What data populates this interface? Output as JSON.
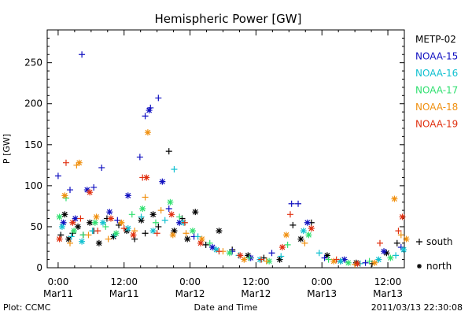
{
  "chart_data": {
    "type": "scatter",
    "title": "Hemispheric Power [GW]",
    "xlabel": "Date and Time",
    "ylabel": "P [GW]",
    "ylim": [
      0,
      290
    ],
    "yticks": [
      0,
      50,
      100,
      150,
      200,
      250
    ],
    "xlim": [
      -0.083,
      2.625
    ],
    "xticks": [
      {
        "x": 0.0,
        "time": "0:00",
        "date": "Mar11"
      },
      {
        "x": 0.5,
        "time": "12:00",
        "date": "Mar11"
      },
      {
        "x": 1.0,
        "time": "0:00",
        "date": "Mar12"
      },
      {
        "x": 1.5,
        "time": "12:00",
        "date": "Mar12"
      },
      {
        "x": 2.0,
        "time": "0:00",
        "date": "Mar13"
      },
      {
        "x": 2.5,
        "time": "12:00",
        "date": "Mar13"
      }
    ],
    "x_unit": "days since Mar11 0:00",
    "legend_position": "right",
    "markers": [
      {
        "symbol": "+",
        "label": "south"
      },
      {
        "symbol": "*",
        "label": "north"
      }
    ],
    "series": [
      {
        "name": "METP-02",
        "color": "#000000",
        "points": [
          [
            0.02,
            40,
            "+"
          ],
          [
            0.05,
            65,
            "*"
          ],
          [
            0.08,
            35,
            "*"
          ],
          [
            0.11,
            42,
            "+"
          ],
          [
            0.15,
            50,
            "*"
          ],
          [
            0.19,
            40,
            "+"
          ],
          [
            0.24,
            55,
            "*"
          ],
          [
            0.27,
            45,
            "+"
          ],
          [
            0.31,
            30,
            "*"
          ],
          [
            0.37,
            60,
            "+"
          ],
          [
            0.42,
            38,
            "*"
          ],
          [
            0.46,
            52,
            "+"
          ],
          [
            0.52,
            45,
            "*"
          ],
          [
            0.58,
            35,
            "+"
          ],
          [
            0.63,
            58,
            "*"
          ],
          [
            0.66,
            42,
            "+"
          ],
          [
            0.72,
            65,
            "*"
          ],
          [
            0.76,
            50,
            "+"
          ],
          [
            0.84,
            142,
            "+"
          ],
          [
            0.88,
            45,
            "*"
          ],
          [
            0.94,
            60,
            "+"
          ],
          [
            0.98,
            35,
            "*"
          ],
          [
            1.04,
            68,
            "*"
          ],
          [
            1.12,
            28,
            "+"
          ],
          [
            1.22,
            45,
            "*"
          ],
          [
            1.32,
            22,
            "+"
          ],
          [
            1.44,
            15,
            "*"
          ],
          [
            1.56,
            12,
            "+"
          ],
          [
            1.68,
            10,
            "*"
          ],
          [
            1.78,
            52,
            "+"
          ],
          [
            1.84,
            35,
            "*"
          ],
          [
            1.92,
            55,
            "+"
          ],
          [
            2.04,
            15,
            "*"
          ],
          [
            2.14,
            8,
            "+"
          ],
          [
            2.26,
            6,
            "*"
          ],
          [
            2.38,
            5,
            "+"
          ],
          [
            2.49,
            18,
            "*"
          ],
          [
            2.57,
            30,
            "+"
          ]
        ]
      },
      {
        "name": "NOAA-15",
        "color": "#1010c0",
        "points": [
          [
            0.0,
            112,
            "+"
          ],
          [
            0.04,
            55,
            "*"
          ],
          [
            0.09,
            95,
            "+"
          ],
          [
            0.13,
            60,
            "*"
          ],
          [
            0.18,
            260,
            "+"
          ],
          [
            0.22,
            95,
            "*"
          ],
          [
            0.27,
            98,
            "+"
          ],
          [
            0.33,
            122,
            "+"
          ],
          [
            0.39,
            68,
            "*"
          ],
          [
            0.45,
            58,
            "+"
          ],
          [
            0.53,
            88,
            "*"
          ],
          [
            0.62,
            135,
            "+"
          ],
          [
            0.66,
            185,
            "+"
          ],
          [
            0.69,
            192,
            "*"
          ],
          [
            0.7,
            195,
            "+"
          ],
          [
            0.76,
            207,
            "+"
          ],
          [
            0.79,
            105,
            "*"
          ],
          [
            0.84,
            72,
            "+"
          ],
          [
            0.92,
            55,
            "*"
          ],
          [
            1.03,
            38,
            "+"
          ],
          [
            1.17,
            25,
            "*"
          ],
          [
            1.32,
            20,
            "+"
          ],
          [
            1.46,
            12,
            "*"
          ],
          [
            1.62,
            18,
            "+"
          ],
          [
            1.77,
            78,
            "+"
          ],
          [
            1.82,
            78,
            "+"
          ],
          [
            1.89,
            55,
            "*"
          ],
          [
            2.02,
            12,
            "+"
          ],
          [
            2.17,
            10,
            "*"
          ],
          [
            2.33,
            6,
            "+"
          ],
          [
            2.47,
            20,
            "*"
          ],
          [
            2.6,
            25,
            "+"
          ]
        ]
      },
      {
        "name": "NOAA-16",
        "color": "#10c0d0",
        "points": [
          [
            0.03,
            50,
            "*"
          ],
          [
            0.1,
            38,
            "+"
          ],
          [
            0.18,
            32,
            "*"
          ],
          [
            0.26,
            45,
            "+"
          ],
          [
            0.34,
            55,
            "*"
          ],
          [
            0.43,
            40,
            "+"
          ],
          [
            0.53,
            48,
            "*"
          ],
          [
            0.63,
            62,
            "+"
          ],
          [
            0.72,
            45,
            "*"
          ],
          [
            0.81,
            58,
            "+"
          ],
          [
            0.88,
            120,
            "+"
          ],
          [
            0.95,
            55,
            "*"
          ],
          [
            1.06,
            38,
            "+"
          ],
          [
            1.2,
            22,
            "*"
          ],
          [
            1.37,
            15,
            "+"
          ],
          [
            1.53,
            10,
            "*"
          ],
          [
            1.69,
            14,
            "+"
          ],
          [
            1.86,
            45,
            "*"
          ],
          [
            1.98,
            18,
            "+"
          ],
          [
            2.14,
            8,
            "*"
          ],
          [
            2.29,
            5,
            "+"
          ],
          [
            2.43,
            10,
            "*"
          ],
          [
            2.56,
            15,
            "+"
          ],
          [
            2.62,
            22,
            "*"
          ]
        ]
      },
      {
        "name": "NOAA-17",
        "color": "#30e070",
        "points": [
          [
            0.01,
            62,
            "*"
          ],
          [
            0.06,
            85,
            "+"
          ],
          [
            0.12,
            45,
            "*"
          ],
          [
            0.19,
            40,
            "+"
          ],
          [
            0.28,
            55,
            "*"
          ],
          [
            0.36,
            50,
            "+"
          ],
          [
            0.44,
            42,
            "*"
          ],
          [
            0.56,
            65,
            "+"
          ],
          [
            0.64,
            72,
            "*"
          ],
          [
            0.74,
            55,
            "+"
          ],
          [
            0.85,
            80,
            "*"
          ],
          [
            0.92,
            62,
            "+"
          ],
          [
            1.02,
            45,
            "*"
          ],
          [
            1.15,
            30,
            "+"
          ],
          [
            1.3,
            18,
            "*"
          ],
          [
            1.45,
            12,
            "+"
          ],
          [
            1.6,
            8,
            "*"
          ],
          [
            1.74,
            28,
            "+"
          ],
          [
            1.9,
            40,
            "*"
          ],
          [
            2.05,
            10,
            "+"
          ],
          [
            2.2,
            6,
            "*"
          ],
          [
            2.36,
            8,
            "+"
          ],
          [
            2.52,
            12,
            "*"
          ]
        ]
      },
      {
        "name": "NOAA-18",
        "color": "#f09010",
        "points": [
          [
            0.05,
            88,
            "*"
          ],
          [
            0.09,
            30,
            "+"
          ],
          [
            0.14,
            125,
            "+"
          ],
          [
            0.16,
            128,
            "*"
          ],
          [
            0.23,
            40,
            "+"
          ],
          [
            0.29,
            62,
            "*"
          ],
          [
            0.38,
            35,
            "+"
          ],
          [
            0.48,
            55,
            "*"
          ],
          [
            0.58,
            45,
            "+"
          ],
          [
            0.66,
            86,
            "+"
          ],
          [
            0.68,
            165,
            "*"
          ],
          [
            0.78,
            70,
            "+"
          ],
          [
            0.87,
            40,
            "*"
          ],
          [
            0.97,
            42,
            "+"
          ],
          [
            1.09,
            35,
            "*"
          ],
          [
            1.25,
            20,
            "+"
          ],
          [
            1.41,
            10,
            "*"
          ],
          [
            1.58,
            8,
            "+"
          ],
          [
            1.73,
            40,
            "*"
          ],
          [
            1.87,
            30,
            "+"
          ],
          [
            2.09,
            8,
            "*"
          ],
          [
            2.25,
            4,
            "+"
          ],
          [
            2.4,
            6,
            "*"
          ],
          [
            2.55,
            84,
            "*"
          ],
          [
            2.6,
            40,
            "+"
          ],
          [
            2.64,
            35,
            "*"
          ]
        ]
      },
      {
        "name": "NOAA-19",
        "color": "#e03010",
        "points": [
          [
            0.01,
            35,
            "*"
          ],
          [
            0.06,
            128,
            "+"
          ],
          [
            0.11,
            55,
            "*"
          ],
          [
            0.17,
            60,
            "+"
          ],
          [
            0.24,
            92,
            "*"
          ],
          [
            0.3,
            45,
            "+"
          ],
          [
            0.4,
            60,
            "*"
          ],
          [
            0.5,
            48,
            "+"
          ],
          [
            0.57,
            40,
            "*"
          ],
          [
            0.64,
            110,
            "+"
          ],
          [
            0.67,
            110,
            "*"
          ],
          [
            0.75,
            42,
            "+"
          ],
          [
            0.86,
            65,
            "*"
          ],
          [
            0.96,
            55,
            "+"
          ],
          [
            1.08,
            30,
            "*"
          ],
          [
            1.22,
            20,
            "+"
          ],
          [
            1.38,
            15,
            "*"
          ],
          [
            1.54,
            10,
            "+"
          ],
          [
            1.7,
            25,
            "*"
          ],
          [
            1.76,
            65,
            "+"
          ],
          [
            1.92,
            48,
            "*"
          ],
          [
            2.11,
            10,
            "+"
          ],
          [
            2.27,
            5,
            "*"
          ],
          [
            2.44,
            30,
            "+"
          ],
          [
            2.58,
            45,
            "+"
          ],
          [
            2.61,
            62,
            "*"
          ]
        ]
      }
    ]
  },
  "footer": {
    "left": "Plot: CCMC",
    "right": "2011/03/13 22:30:08"
  }
}
